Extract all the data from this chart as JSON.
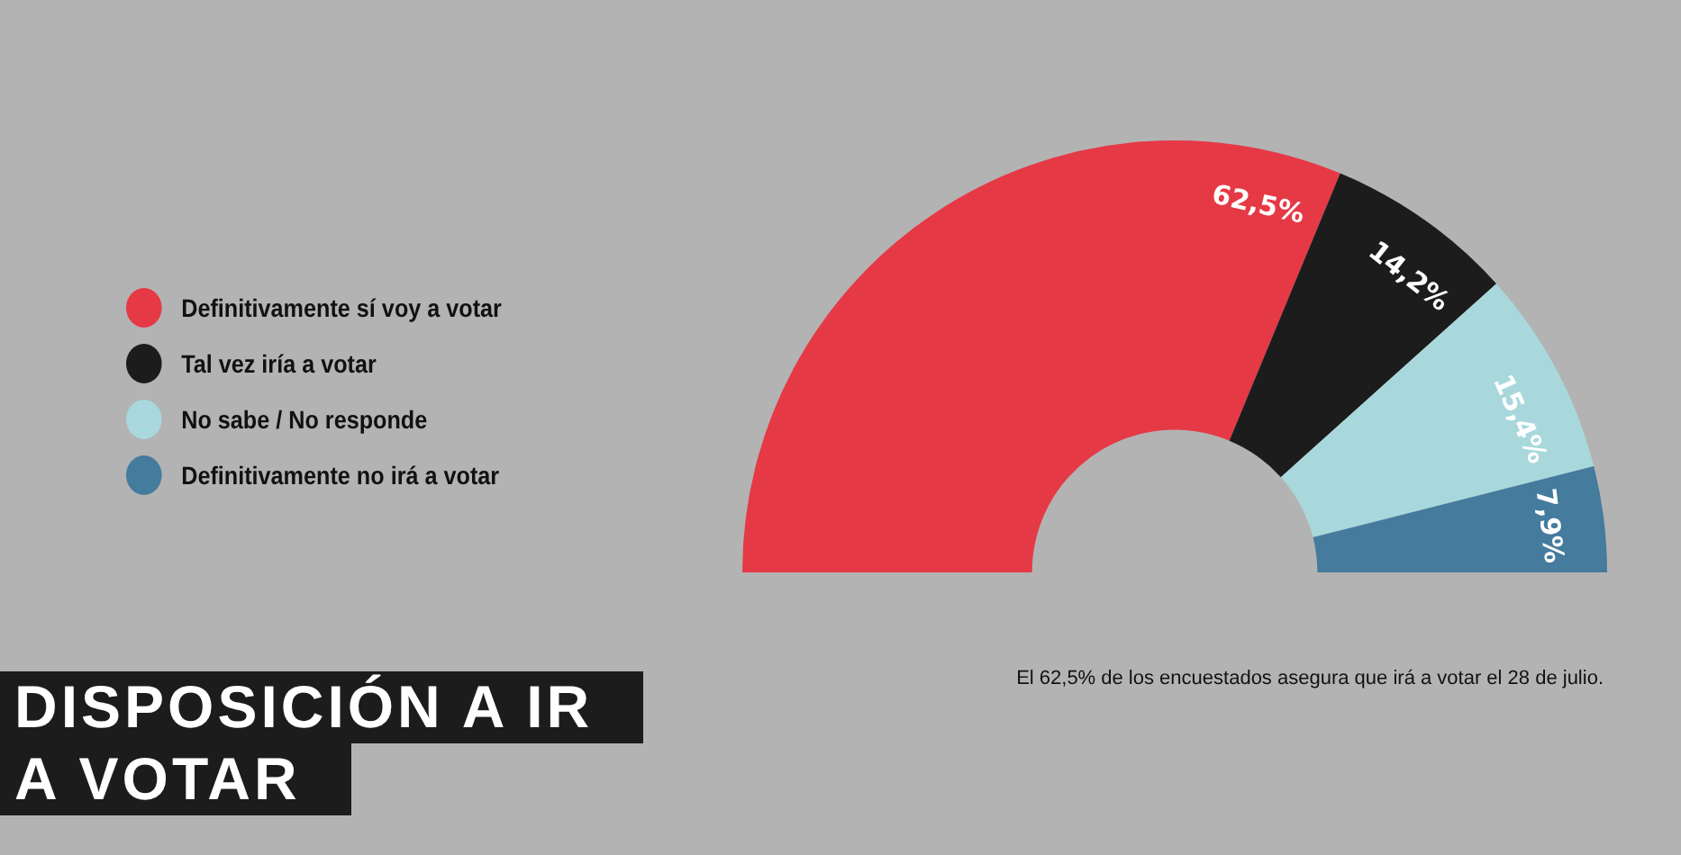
{
  "chart_data": {
    "type": "donut",
    "title": "DISPOSICIÓN A IR A VOTAR",
    "categories": [
      "Definitivamente sí voy a votar",
      "Tal vez iría a votar",
      "No sabe / No responde",
      "Definitivamente no irá a votar"
    ],
    "values": [
      62.5,
      14.2,
      15.4,
      7.9
    ],
    "value_labels": [
      "62,5%",
      "14,2%",
      "15,4%",
      "7,9%"
    ],
    "colors": [
      "#e63946",
      "#1c1c1c",
      "#a8d8dc",
      "#457b9d"
    ],
    "legend": "left",
    "annotations": [
      "El 62,5% de los encuestados asegura que irá a votar el 28 de julio."
    ]
  }
}
